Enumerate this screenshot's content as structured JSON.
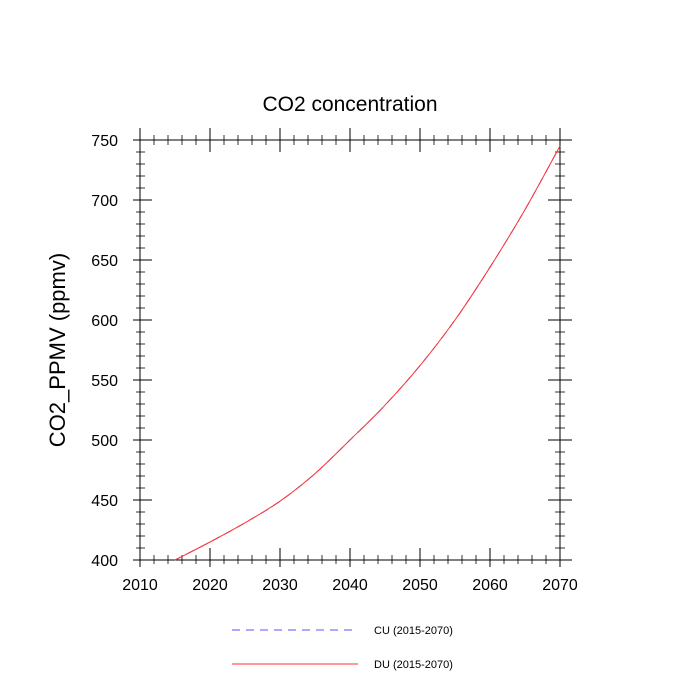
{
  "chart_data": {
    "type": "line",
    "title": "CO2 concentration",
    "xlabel": "",
    "ylabel": "CO2_PPMV  (ppmv)",
    "xlim": [
      2010,
      2070
    ],
    "ylim": [
      400,
      750
    ],
    "xticks": [
      2010,
      2020,
      2030,
      2040,
      2050,
      2060,
      2070
    ],
    "yticks": [
      400,
      450,
      500,
      550,
      600,
      650,
      700,
      750
    ],
    "x_minor_step": 2,
    "y_minor_step": 10,
    "grid": false,
    "legend_position": "bottom",
    "x": [
      2015,
      2020,
      2025,
      2030,
      2035,
      2040,
      2045,
      2050,
      2055,
      2060,
      2065,
      2070
    ],
    "series": [
      {
        "name": "CU (2015-2070)",
        "color": "#5555ff",
        "style": "dashed",
        "values": [
          400,
          415,
          431,
          449,
          472,
          500,
          529,
          562,
          600,
          644,
          692,
          745
        ]
      },
      {
        "name": "DU (2015-2070)",
        "color": "#ff3333",
        "style": "solid",
        "values": [
          400,
          415,
          431,
          449,
          472,
          500,
          529,
          562,
          600,
          644,
          692,
          745
        ]
      }
    ]
  }
}
